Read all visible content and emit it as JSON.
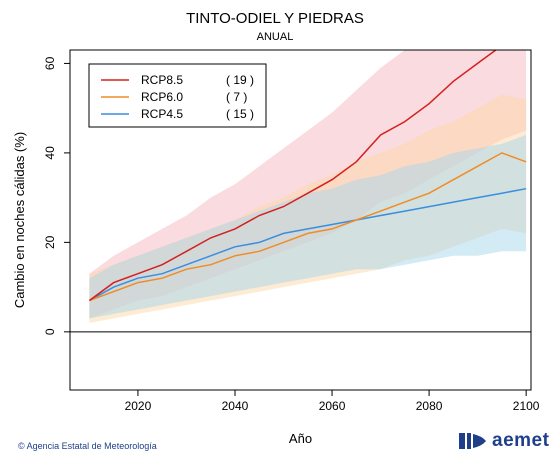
{
  "header": {
    "title": "TINTO-ODIEL Y PIEDRAS",
    "subtitle": "ANUAL"
  },
  "footer": {
    "credit": "© Agencia Estatal de Meteorología",
    "logo_text": "aemet"
  },
  "chart_data": {
    "type": "line",
    "xlabel": "Año",
    "ylabel": "Cambio en noches cálidas (%)",
    "xlim": [
      2006,
      2101
    ],
    "ylim": [
      -13,
      63
    ],
    "xticks": [
      2020,
      2040,
      2060,
      2080,
      2100
    ],
    "yticks": [
      0,
      20,
      40,
      60
    ],
    "grid": false,
    "legend_position": "top-left",
    "zero_line": true,
    "series": [
      {
        "name": "RCP8.5",
        "count_label": "( 19 )",
        "color": "#d42020",
        "band_color": "#f6b8c0",
        "x": [
          2010,
          2015,
          2020,
          2025,
          2030,
          2035,
          2040,
          2045,
          2050,
          2055,
          2060,
          2065,
          2070,
          2075,
          2080,
          2085,
          2090,
          2095,
          2100
        ],
        "y": [
          7,
          11,
          13,
          15,
          18,
          21,
          23,
          26,
          28,
          31,
          34,
          38,
          44,
          47,
          51,
          56,
          60,
          64,
          66
        ],
        "lower": [
          3,
          5,
          7,
          8,
          10,
          12,
          14,
          16,
          18,
          20,
          22,
          25,
          29,
          31,
          34,
          37,
          40,
          43,
          45
        ],
        "upper": [
          13,
          17,
          20,
          23,
          26,
          30,
          33,
          37,
          41,
          45,
          49,
          54,
          59,
          63,
          63,
          63,
          63,
          63,
          63
        ]
      },
      {
        "name": "RCP6.0",
        "count_label": "(   7 )",
        "color": "#f08c28",
        "band_color": "#fbd8a8",
        "x": [
          2010,
          2015,
          2020,
          2025,
          2030,
          2035,
          2040,
          2045,
          2050,
          2055,
          2060,
          2065,
          2070,
          2075,
          2080,
          2085,
          2090,
          2095,
          2100
        ],
        "y": [
          7,
          9,
          11,
          12,
          14,
          15,
          17,
          18,
          20,
          22,
          23,
          25,
          27,
          29,
          31,
          34,
          37,
          40,
          38
        ],
        "lower": [
          2,
          3,
          4,
          5,
          6,
          7,
          8,
          9,
          10,
          11,
          12,
          13,
          14,
          16,
          17,
          19,
          21,
          23,
          22
        ],
        "upper": [
          13,
          15,
          17,
          19,
          21,
          23,
          25,
          28,
          30,
          33,
          35,
          38,
          40,
          42,
          45,
          47,
          50,
          53,
          52
        ]
      },
      {
        "name": "RCP4.5",
        "count_label": "( 15 )",
        "color": "#3a8ee0",
        "band_color": "#a8d8ec",
        "x": [
          2010,
          2015,
          2020,
          2025,
          2030,
          2035,
          2040,
          2045,
          2050,
          2055,
          2060,
          2065,
          2070,
          2075,
          2080,
          2085,
          2090,
          2095,
          2100
        ],
        "y": [
          7,
          10,
          12,
          13,
          15,
          17,
          19,
          20,
          22,
          23,
          24,
          25,
          26,
          27,
          28,
          29,
          30,
          31,
          32
        ],
        "lower": [
          3,
          4,
          5,
          6,
          7,
          8,
          9,
          10,
          11,
          12,
          13,
          14,
          14,
          15,
          16,
          17,
          17,
          18,
          18
        ],
        "upper": [
          12,
          15,
          17,
          19,
          21,
          23,
          25,
          27,
          29,
          31,
          32,
          34,
          35,
          37,
          38,
          40,
          41,
          42,
          44
        ]
      }
    ]
  }
}
